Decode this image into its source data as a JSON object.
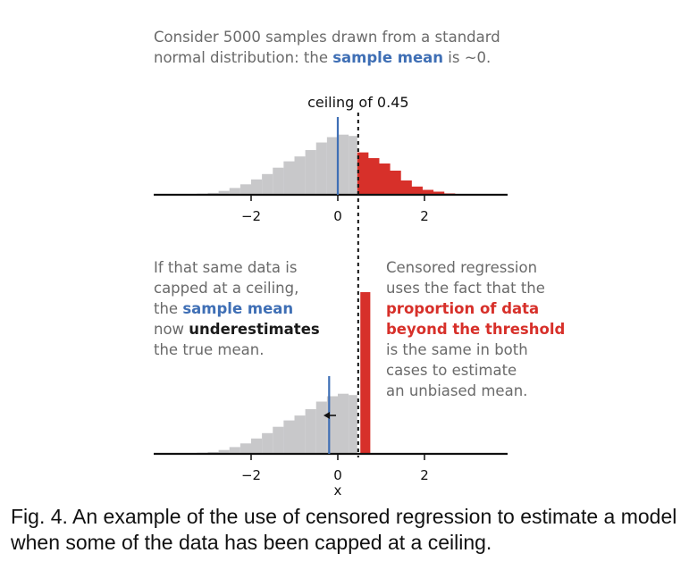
{
  "intro": {
    "line1": "Consider 5000 samples drawn from a standard",
    "line2_pre": "normal distribution: the ",
    "line2_hl": "sample mean",
    "line2_post": " is ~0."
  },
  "left_note": {
    "l1": "If that same data is",
    "l2": "capped at a ceiling,",
    "l3_pre": "the ",
    "l3_hl": "sample mean",
    "l4_pre": "now ",
    "l4_hl": "underestimates",
    "l5": "the true mean."
  },
  "right_note": {
    "l1": "Censored regression",
    "l2": "uses the fact that the",
    "l3": "proportion of data",
    "l4": "beyond the threshold",
    "l5": "is the same in both",
    "l6": "cases to estimate",
    "l7": "an unbiased mean."
  },
  "caption": "Fig. 4. An example of the use of censored regression to estimate a model when some of the data has been capped at a ceiling.",
  "colors": {
    "gray": "#c8c8ca",
    "red": "#d7302a",
    "blue": "#3f6fb5",
    "axis": "#111111"
  },
  "chart_data": [
    {
      "type": "bar",
      "title": "",
      "xlabel": "",
      "ylabel": "",
      "ceiling": 0.45,
      "ceiling_label": "ceiling of 0.45",
      "mean": 0,
      "xlim": [
        -4.4,
        4.0
      ],
      "ylim": [
        0,
        1
      ],
      "xticks": [
        {
          "value": -2,
          "label": "−2"
        },
        {
          "value": 0,
          "label": "0"
        },
        {
          "value": 2,
          "label": "2"
        }
      ],
      "bin_width": 0.25,
      "bin_start": -3.25,
      "below_ceiling": [
        0.013,
        0.021,
        0.043,
        0.076,
        0.117,
        0.172,
        0.232,
        0.303,
        0.374,
        0.429,
        0.5,
        0.585,
        0.645,
        0.673,
        0.658,
        0.612
      ],
      "above_ceiling": [
        0.474,
        0.41,
        0.35,
        0.27,
        0.16,
        0.092,
        0.055,
        0.035,
        0.015
      ]
    },
    {
      "type": "bar",
      "title": "",
      "xlabel": "x",
      "ylabel": "",
      "ceiling": 0.45,
      "mean": -0.2,
      "xlim": [
        -4.4,
        4.0
      ],
      "ylim": [
        0,
        1
      ],
      "xticks": [
        {
          "value": -2,
          "label": "−2"
        },
        {
          "value": 0,
          "label": "0"
        },
        {
          "value": 2,
          "label": "2"
        }
      ],
      "bin_width": 0.25,
      "bin_start": -3.25,
      "below_ceiling": [
        0.013,
        0.021,
        0.043,
        0.076,
        0.117,
        0.172,
        0.232,
        0.303,
        0.374,
        0.429,
        0.5,
        0.585,
        0.645,
        0.673,
        0.658,
        0.612
      ],
      "capped_bar": {
        "x0": 0.5,
        "x1": 0.75,
        "value": 1.81
      }
    }
  ]
}
